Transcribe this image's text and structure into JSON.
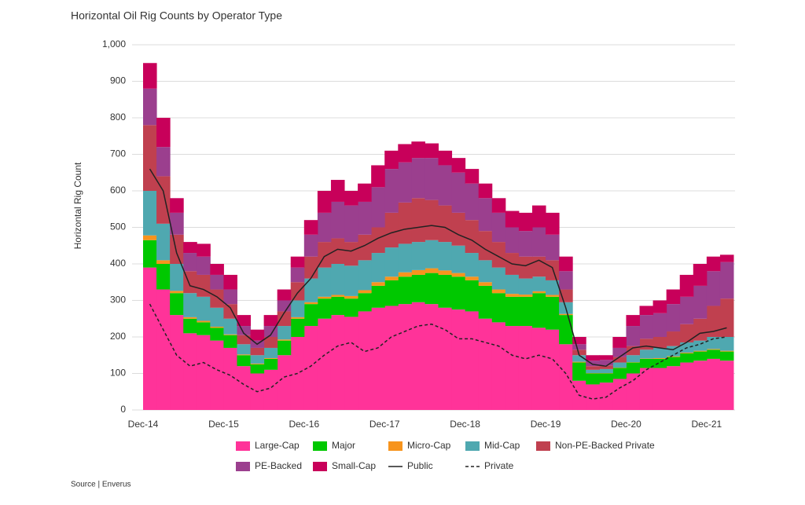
{
  "chart_data": {
    "type": "stacked-step-area",
    "title": "Horizontal Oil Rig Counts by Operator Type",
    "y_label": "Horizontal Rig Count",
    "source": "Source | Enverus",
    "categories": [
      "Dec-14",
      null,
      null,
      null,
      null,
      null,
      "Dec-15",
      null,
      null,
      null,
      null,
      null,
      "Dec-16",
      null,
      null,
      null,
      null,
      null,
      "Dec-17",
      null,
      null,
      null,
      null,
      null,
      "Dec-18",
      null,
      null,
      null,
      null,
      null,
      "Dec-19",
      null,
      null,
      null,
      null,
      null,
      "Dec-20",
      null,
      null,
      null,
      null,
      null,
      "Dec-21",
      null
    ],
    "ylim": [
      0,
      1000
    ],
    "yticks": [
      0,
      100,
      200,
      300,
      400,
      500,
      600,
      700,
      800,
      900,
      {
        "value": 1000,
        "label": "1,000"
      }
    ],
    "grid": true,
    "series": [
      {
        "name": "Large-Cap",
        "kind": "area",
        "color": "#ff3399",
        "values": [
          390,
          330,
          260,
          210,
          205,
          190,
          170,
          120,
          100,
          110,
          150,
          200,
          230,
          250,
          260,
          255,
          270,
          280,
          285,
          290,
          295,
          290,
          280,
          275,
          270,
          250,
          240,
          230,
          230,
          225,
          220,
          180,
          80,
          70,
          75,
          85,
          100,
          115,
          115,
          120,
          130,
          135,
          140,
          135
        ]
      },
      {
        "name": "Major",
        "kind": "area",
        "color": "#00c800",
        "values": [
          75,
          70,
          60,
          40,
          35,
          35,
          35,
          30,
          25,
          30,
          40,
          50,
          60,
          55,
          50,
          50,
          50,
          60,
          70,
          75,
          75,
          85,
          90,
          90,
          85,
          90,
          80,
          80,
          80,
          95,
          90,
          80,
          50,
          30,
          25,
          30,
          30,
          25,
          25,
          25,
          25,
          25,
          25,
          25
        ]
      },
      {
        "name": "Micro-Cap",
        "kind": "area",
        "color": "#f7941d",
        "values": [
          13,
          10,
          6,
          4,
          4,
          3,
          2,
          2,
          2,
          2,
          3,
          4,
          5,
          5,
          5,
          7,
          8,
          10,
          10,
          12,
          13,
          13,
          12,
          10,
          10,
          10,
          10,
          8,
          6,
          5,
          5,
          3,
          2,
          1,
          1,
          1,
          1,
          1,
          2,
          2,
          2,
          2,
          2,
          2
        ]
      },
      {
        "name": "Mid-Cap",
        "kind": "area",
        "color": "#4fa8b0",
        "values": [
          122,
          100,
          74,
          66,
          66,
          52,
          43,
          28,
          23,
          28,
          37,
          46,
          65,
          80,
          85,
          83,
          82,
          80,
          80,
          78,
          77,
          77,
          78,
          75,
          65,
          60,
          60,
          52,
          44,
          40,
          40,
          32,
          18,
          9,
          11,
          14,
          19,
          24,
          28,
          28,
          28,
          28,
          33,
          38
        ]
      },
      {
        "name": "Non-PE-Backed Private",
        "kind": "area",
        "color": "#c0404f",
        "values": [
          180,
          130,
          80,
          60,
          60,
          50,
          40,
          25,
          20,
          30,
          40,
          50,
          60,
          70,
          70,
          65,
          70,
          70,
          95,
          113,
          120,
          110,
          100,
          90,
          90,
          80,
          70,
          60,
          60,
          55,
          55,
          35,
          15,
          10,
          10,
          15,
          25,
          30,
          30,
          40,
          50,
          60,
          85,
          105
        ]
      },
      {
        "name": "PE-Backed",
        "kind": "area",
        "color": "#9b3f8e",
        "values": [
          100,
          80,
          60,
          50,
          50,
          40,
          40,
          25,
          20,
          30,
          30,
          40,
          60,
          80,
          100,
          100,
          90,
          110,
          120,
          110,
          110,
          115,
          110,
          110,
          100,
          90,
          80,
          70,
          70,
          80,
          70,
          50,
          15,
          15,
          15,
          25,
          55,
          65,
          65,
          75,
          75,
          90,
          95,
          100
        ]
      },
      {
        "name": "Small-Cap",
        "kind": "area",
        "color": "#c8005a",
        "values": [
          70,
          80,
          40,
          30,
          35,
          30,
          40,
          30,
          30,
          30,
          30,
          30,
          40,
          60,
          60,
          40,
          50,
          60,
          50,
          50,
          45,
          40,
          40,
          40,
          40,
          40,
          40,
          45,
          50,
          60,
          60,
          40,
          20,
          15,
          13,
          30,
          30,
          25,
          35,
          40,
          60,
          60,
          40,
          20
        ]
      },
      {
        "name": "Public",
        "kind": "line",
        "line_style": "solid",
        "color": "#222222",
        "values": [
          660,
          600,
          430,
          340,
          330,
          310,
          280,
          210,
          180,
          205,
          265,
          320,
          360,
          420,
          440,
          435,
          450,
          470,
          485,
          495,
          500,
          505,
          500,
          480,
          465,
          440,
          420,
          400,
          395,
          410,
          390,
          280,
          150,
          125,
          120,
          145,
          170,
          175,
          170,
          165,
          185,
          210,
          215,
          225
        ]
      },
      {
        "name": "Private",
        "kind": "line",
        "line_style": "dashed",
        "color": "#222222",
        "values": [
          290,
          220,
          150,
          120,
          130,
          110,
          95,
          70,
          50,
          60,
          90,
          100,
          120,
          150,
          175,
          185,
          160,
          170,
          200,
          215,
          230,
          235,
          220,
          195,
          195,
          185,
          175,
          150,
          140,
          150,
          140,
          100,
          40,
          30,
          35,
          60,
          80,
          110,
          130,
          150,
          170,
          180,
          195,
          200
        ]
      }
    ]
  }
}
